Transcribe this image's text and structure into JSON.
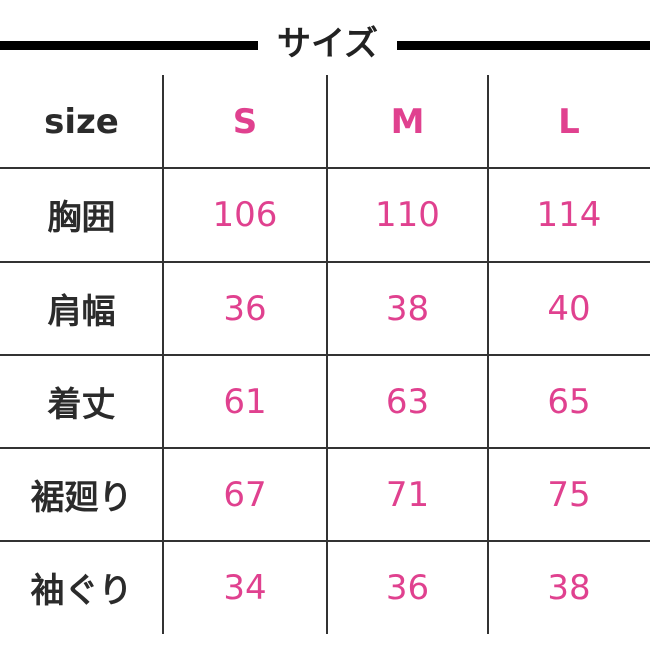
{
  "title": "サイズ",
  "header": {
    "label": "size",
    "sizes": [
      "S",
      "M",
      "L"
    ]
  },
  "rows": [
    {
      "label": "胸囲",
      "values": [
        "106",
        "110",
        "114"
      ]
    },
    {
      "label": "肩幅",
      "values": [
        "36",
        "38",
        "40"
      ]
    },
    {
      "label": "着丈",
      "values": [
        "61",
        "63",
        "65"
      ]
    },
    {
      "label": "裾廻り",
      "values": [
        "67",
        "71",
        "75"
      ]
    },
    {
      "label": "袖ぐり",
      "values": [
        "34",
        "36",
        "38"
      ]
    }
  ],
  "colors": {
    "accent": "#e0418f",
    "text": "#2b2b2b",
    "rule": "#000000"
  }
}
